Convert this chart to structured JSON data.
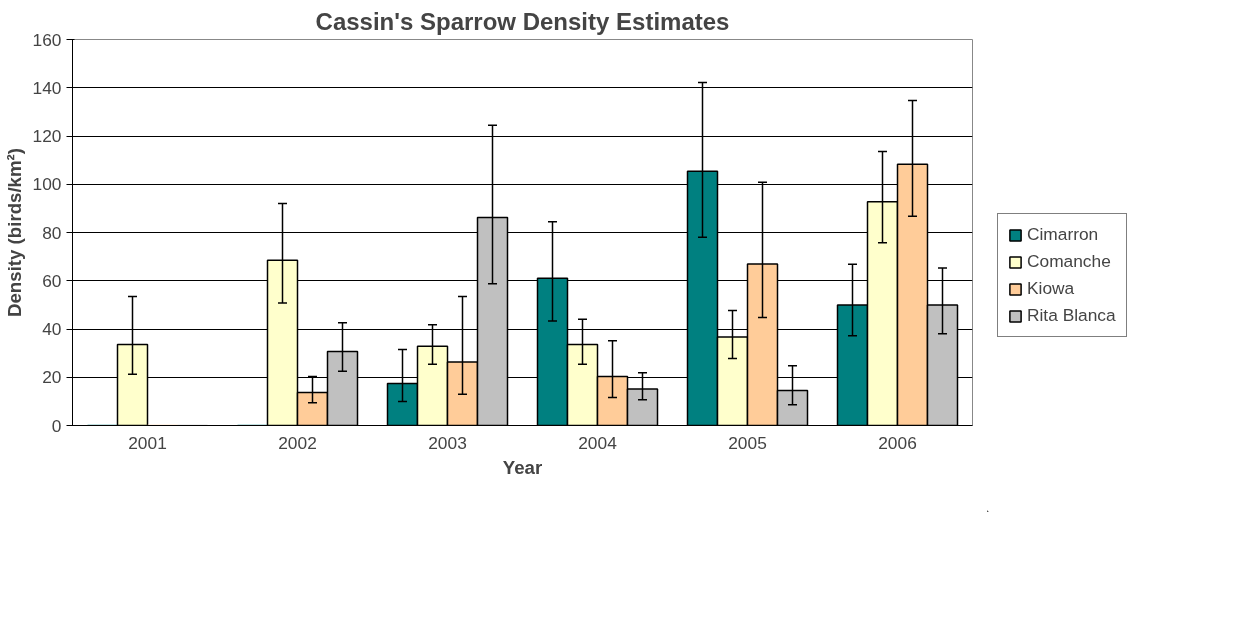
{
  "chart_data": {
    "type": "bar",
    "title": "Cassin's Sparrow Density Estimates",
    "xlabel": "Year",
    "ylabel": "Density (birds/km²)",
    "categories": [
      "2001",
      "2002",
      "2003",
      "2004",
      "2005",
      "2006"
    ],
    "series": [
      {
        "name": "Cimarron",
        "color": "#008080",
        "values": [
          0,
          0,
          17.4,
          61.0,
          105.4,
          49.9
        ],
        "errors": [
          null,
          null,
          [
            10.0,
            31.5
          ],
          [
            43.3,
            84.5
          ],
          [
            78.0,
            142.2
          ],
          [
            37.2,
            66.8
          ]
        ]
      },
      {
        "name": "Comanche",
        "color": "#ffffcc",
        "values": [
          33.6,
          68.5,
          32.9,
          33.6,
          36.7,
          92.7
        ],
        "errors": [
          [
            21.2,
            53.5
          ],
          [
            50.8,
            92.0
          ],
          [
            25.4,
            41.8
          ],
          [
            25.4,
            44.0
          ],
          [
            27.8,
            47.7
          ],
          [
            75.7,
            113.6
          ]
        ]
      },
      {
        "name": "Kiowa",
        "color": "#ffcc99",
        "values": [
          0,
          13.7,
          26.3,
          20.3,
          66.9,
          108.3
        ],
        "errors": [
          null,
          [
            9.4,
            20.3
          ],
          [
            13.0,
            53.5
          ],
          [
            11.6,
            35.1
          ],
          [
            44.8,
            100.8
          ],
          [
            86.7,
            134.7
          ]
        ]
      },
      {
        "name": "Rita Blanca",
        "color": "#c0c0c0",
        "values": [
          0,
          30.7,
          86.2,
          15.1,
          14.5,
          49.9
        ],
        "errors": [
          null,
          [
            22.5,
            42.6
          ],
          [
            58.8,
            124.5
          ],
          [
            10.7,
            21.9
          ],
          [
            8.6,
            24.8
          ],
          [
            38.0,
            65.3
          ]
        ]
      }
    ],
    "ylim": [
      0,
      160
    ],
    "yticks": [
      0,
      20,
      40,
      60,
      80,
      100,
      120,
      140,
      160
    ],
    "grid": "y",
    "legend": "right"
  }
}
